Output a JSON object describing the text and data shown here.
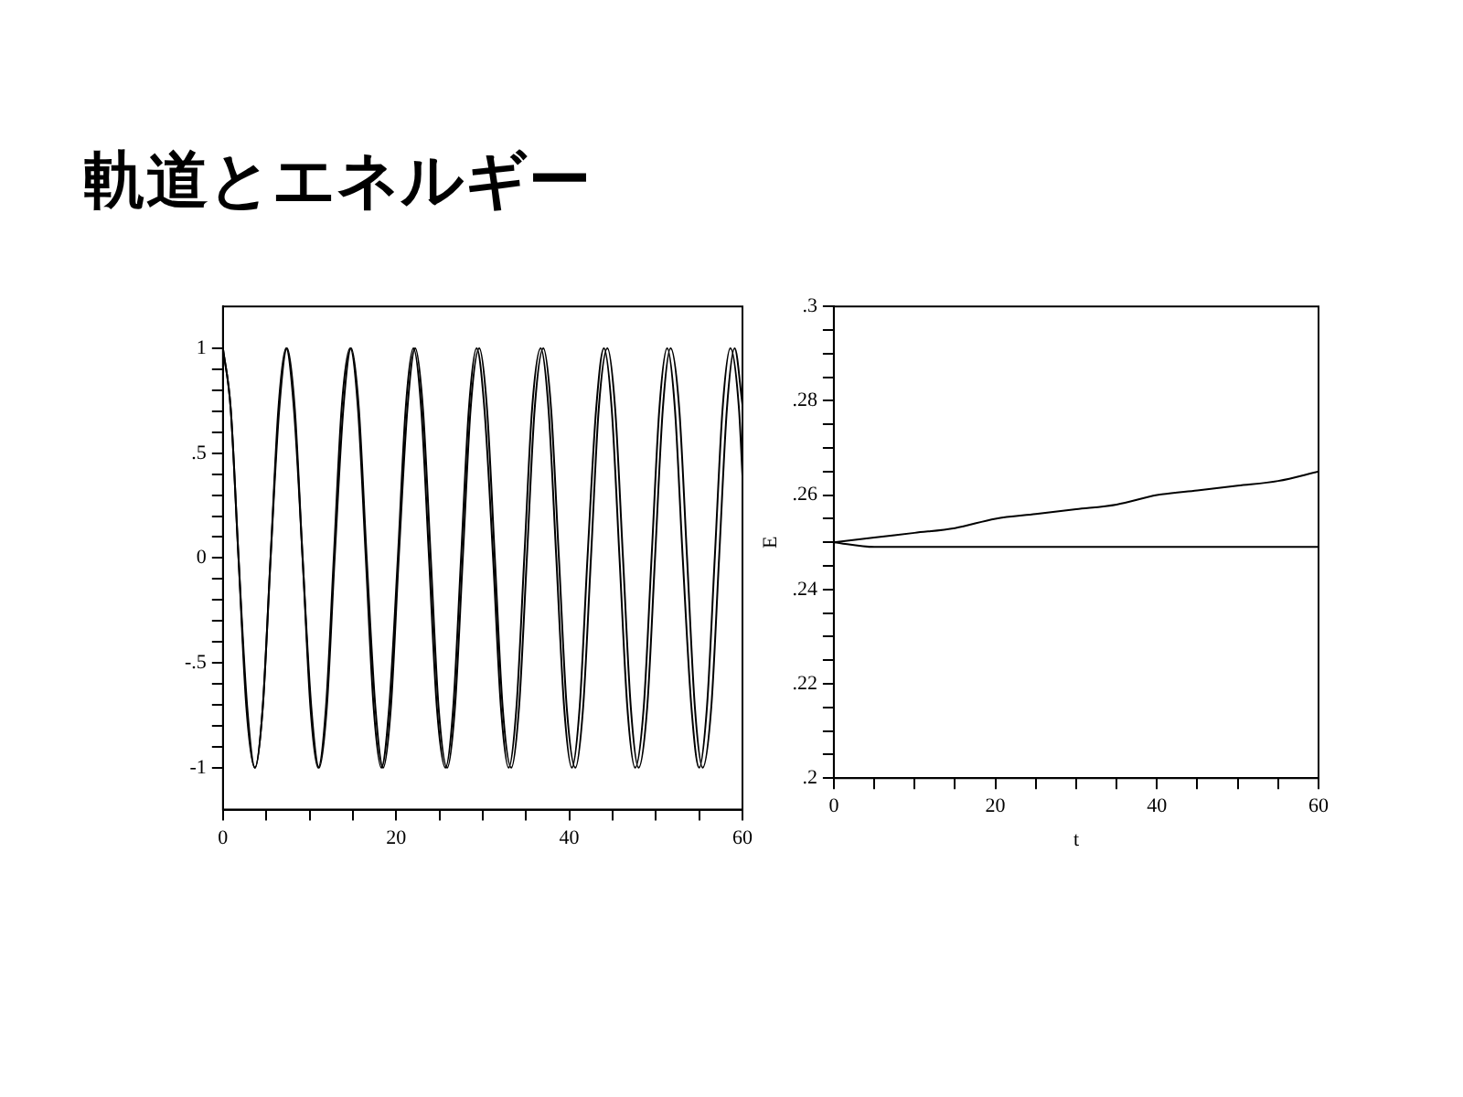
{
  "chart_data": [
    {
      "type": "line",
      "title": "軌道とエネルギー",
      "xlim": [
        0,
        60
      ],
      "ylim": [
        -1.2,
        1.2
      ],
      "xticks": [
        0,
        {
          "value": 5,
          "label": null
        },
        {
          "value": 10,
          "label": null
        },
        {
          "value": 15,
          "label": null
        },
        20,
        {
          "value": 25,
          "label": null
        },
        {
          "value": 30,
          "label": null
        },
        {
          "value": 35,
          "label": null
        },
        40,
        {
          "value": 45,
          "label": null
        },
        {
          "value": 50,
          "label": null
        },
        {
          "value": 55,
          "label": null
        },
        60
      ],
      "yticks": [
        {
          "value": -1,
          "label": "-1"
        },
        {
          "value": -0.9,
          "label": null
        },
        {
          "value": -0.8,
          "label": null
        },
        {
          "value": -0.7,
          "label": null
        },
        {
          "value": -0.6,
          "label": null
        },
        {
          "value": -0.5,
          "label": "-.5"
        },
        {
          "value": -0.4,
          "label": null
        },
        {
          "value": -0.3,
          "label": null
        },
        {
          "value": -0.2,
          "label": null
        },
        {
          "value": -0.1,
          "label": null
        },
        0,
        {
          "value": 0.1,
          "label": null
        },
        {
          "value": 0.2,
          "label": null
        },
        {
          "value": 0.3,
          "label": null
        },
        {
          "value": 0.4,
          "label": null
        },
        {
          "value": 0.5,
          "label": ".5"
        },
        {
          "value": 0.6,
          "label": null
        },
        {
          "value": 0.7,
          "label": null
        },
        {
          "value": 0.8,
          "label": null
        },
        {
          "value": 0.9,
          "label": null
        },
        1
      ],
      "grid": false,
      "legend": false,
      "marker": "none",
      "line_style": "solid",
      "series": [
        {
          "color": "#000000",
          "x": [
            0,
            0.9,
            1.8,
            2.7,
            3.7,
            4.6,
            5.5,
            6.4,
            7.3,
            8.2,
            9.2,
            10.1,
            11.0,
            11.9,
            12.8,
            13.7,
            14.7,
            15.6,
            16.5,
            17.4,
            18.3,
            19.2,
            20.2,
            21.1,
            22.0,
            22.9,
            23.8,
            24.7,
            25.7,
            26.6,
            27.5,
            28.4,
            29.3,
            30.2,
            31.2,
            32.1,
            33.0,
            33.9,
            34.8,
            35.7,
            36.7,
            37.6,
            38.5,
            39.4,
            40.3,
            41.2,
            42.1,
            43.1,
            44.0,
            44.9,
            45.8,
            46.7,
            47.6,
            48.6,
            49.5,
            50.4,
            51.3,
            52.2,
            53.1,
            54.1,
            55.0,
            55.9,
            56.8,
            57.7,
            58.6,
            59.6,
            60
          ],
          "values": [
            1,
            0.71,
            0,
            -0.71,
            -1,
            -0.71,
            0,
            0.71,
            1,
            0.71,
            0,
            -0.71,
            -1,
            -0.71,
            0,
            0.71,
            1,
            0.71,
            0,
            -0.71,
            -1,
            -0.71,
            0,
            0.71,
            1,
            0.71,
            0,
            -0.71,
            -1,
            -0.71,
            0,
            0.71,
            1,
            0.71,
            0,
            -0.71,
            -1,
            -0.71,
            0,
            0.71,
            1,
            0.71,
            0,
            -0.71,
            -1,
            -0.71,
            0,
            0.71,
            1,
            0.71,
            0,
            -0.71,
            -1,
            -0.71,
            0,
            0.71,
            1,
            0.71,
            0,
            -0.71,
            -1,
            -0.71,
            0,
            0.71,
            1,
            0.71,
            0.39
          ]
        },
        {
          "color": "#000000",
          "x": [
            0,
            0.9,
            1.8,
            2.8,
            3.7,
            4.6,
            5.5,
            6.5,
            7.4,
            8.3,
            9.2,
            10.2,
            11.1,
            12.0,
            12.9,
            13.9,
            14.8,
            15.7,
            16.6,
            17.6,
            18.5,
            19.4,
            20.3,
            21.3,
            22.2,
            23.1,
            24.0,
            24.9,
            25.9,
            26.8,
            27.7,
            28.6,
            29.6,
            30.5,
            31.4,
            32.3,
            33.3,
            34.2,
            35.1,
            36.0,
            37.0,
            37.9,
            38.8,
            39.7,
            40.7,
            41.6,
            42.5,
            43.4,
            44.4,
            45.3,
            46.2,
            47.1,
            48.0,
            49.0,
            49.9,
            50.8,
            51.7,
            52.7,
            53.6,
            54.5,
            55.4,
            56.4,
            57.3,
            58.2,
            59.1,
            60
          ],
          "values": [
            1,
            0.71,
            0,
            -0.71,
            -1,
            -0.71,
            0,
            0.71,
            1,
            0.71,
            0,
            -0.71,
            -1,
            -0.71,
            0,
            0.71,
            1,
            0.71,
            0,
            -0.71,
            -1,
            -0.71,
            0,
            0.71,
            1,
            0.71,
            0,
            -0.71,
            -1,
            -0.71,
            0,
            0.71,
            1,
            0.71,
            0,
            -0.71,
            -1,
            -0.71,
            0,
            0.71,
            1,
            0.71,
            0,
            -0.71,
            -1,
            -0.71,
            0,
            0.71,
            1,
            0.71,
            0,
            -0.71,
            -1,
            -0.71,
            0,
            0.71,
            1,
            0.71,
            0,
            -0.71,
            -1,
            -0.71,
            0,
            0.71,
            1,
            0.73
          ]
        }
      ]
    },
    {
      "type": "line",
      "xlabel": "t",
      "ylabel": "E",
      "xlim": [
        0,
        60
      ],
      "ylim": [
        0.2,
        0.3
      ],
      "xticks": [
        0,
        {
          "value": 5,
          "label": null
        },
        {
          "value": 10,
          "label": null
        },
        {
          "value": 15,
          "label": null
        },
        20,
        {
          "value": 25,
          "label": null
        },
        {
          "value": 30,
          "label": null
        },
        {
          "value": 35,
          "label": null
        },
        40,
        {
          "value": 45,
          "label": null
        },
        {
          "value": 50,
          "label": null
        },
        {
          "value": 55,
          "label": null
        },
        60
      ],
      "yticks": [
        {
          "value": 0.2,
          "label": ".2"
        },
        {
          "value": 0.205,
          "label": null
        },
        {
          "value": 0.21,
          "label": null
        },
        {
          "value": 0.215,
          "label": null
        },
        {
          "value": 0.22,
          "label": ".22"
        },
        {
          "value": 0.225,
          "label": null
        },
        {
          "value": 0.23,
          "label": null
        },
        {
          "value": 0.235,
          "label": null
        },
        {
          "value": 0.24,
          "label": ".24"
        },
        {
          "value": 0.245,
          "label": null
        },
        {
          "value": 0.25,
          "label": null
        },
        {
          "value": 0.255,
          "label": null
        },
        {
          "value": 0.26,
          "label": ".26"
        },
        {
          "value": 0.265,
          "label": null
        },
        {
          "value": 0.27,
          "label": null
        },
        {
          "value": 0.275,
          "label": null
        },
        {
          "value": 0.28,
          "label": ".28"
        },
        {
          "value": 0.285,
          "label": null
        },
        {
          "value": 0.29,
          "label": null
        },
        {
          "value": 0.295,
          "label": null
        },
        {
          "value": 0.3,
          "label": ".3"
        }
      ],
      "grid": false,
      "legend": false,
      "marker": "none",
      "line_style": "solid",
      "series": [
        {
          "color": "#000000",
          "x": [
            0,
            5,
            10,
            15,
            20,
            25,
            30,
            35,
            40,
            45,
            50,
            55,
            60
          ],
          "values": [
            0.25,
            0.251,
            0.252,
            0.253,
            0.255,
            0.256,
            0.257,
            0.258,
            0.26,
            0.261,
            0.262,
            0.263,
            0.265
          ]
        },
        {
          "color": "#000000",
          "x": [
            0,
            5,
            10,
            15,
            20,
            25,
            30,
            35,
            40,
            45,
            50,
            55,
            60
          ],
          "values": [
            0.25,
            0.249,
            0.249,
            0.249,
            0.249,
            0.249,
            0.249,
            0.249,
            0.249,
            0.249,
            0.249,
            0.249,
            0.249
          ]
        }
      ]
    }
  ]
}
